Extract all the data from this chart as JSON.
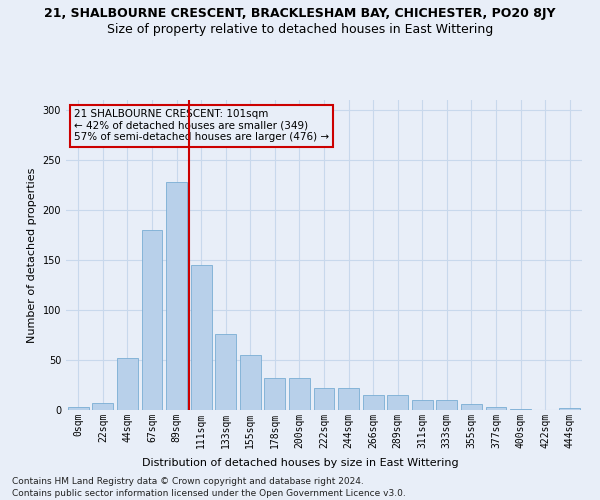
{
  "title_line1": "21, SHALBOURNE CRESCENT, BRACKLESHAM BAY, CHICHESTER, PO20 8JY",
  "title_line2": "Size of property relative to detached houses in East Wittering",
  "xlabel": "Distribution of detached houses by size in East Wittering",
  "ylabel": "Number of detached properties",
  "footer_line1": "Contains HM Land Registry data © Crown copyright and database right 2024.",
  "footer_line2": "Contains public sector information licensed under the Open Government Licence v3.0.",
  "annotation_line1": "21 SHALBOURNE CRESCENT: 101sqm",
  "annotation_line2": "← 42% of detached houses are smaller (349)",
  "annotation_line3": "57% of semi-detached houses are larger (476) →",
  "categories": [
    "0sqm",
    "22sqm",
    "44sqm",
    "67sqm",
    "89sqm",
    "111sqm",
    "133sqm",
    "155sqm",
    "178sqm",
    "200sqm",
    "222sqm",
    "244sqm",
    "266sqm",
    "289sqm",
    "311sqm",
    "333sqm",
    "355sqm",
    "377sqm",
    "400sqm",
    "422sqm",
    "444sqm"
  ],
  "values": [
    3,
    7,
    52,
    180,
    228,
    145,
    76,
    55,
    32,
    32,
    22,
    22,
    15,
    15,
    10,
    10,
    6,
    3,
    1,
    0,
    2
  ],
  "bar_color": "#b8d0ea",
  "bar_edge_color": "#7aadd4",
  "vline_color": "#cc0000",
  "vline_x": 4.5,
  "ylim": [
    0,
    310
  ],
  "yticks": [
    0,
    50,
    100,
    150,
    200,
    250,
    300
  ],
  "grid_color": "#c8d8ec",
  "bg_color": "#e8eef8",
  "annotation_box_color": "#cc0000",
  "title_fontsize": 9,
  "subtitle_fontsize": 9,
  "ylabel_fontsize": 8,
  "xlabel_fontsize": 8,
  "tick_fontsize": 7,
  "footer_fontsize": 6.5
}
